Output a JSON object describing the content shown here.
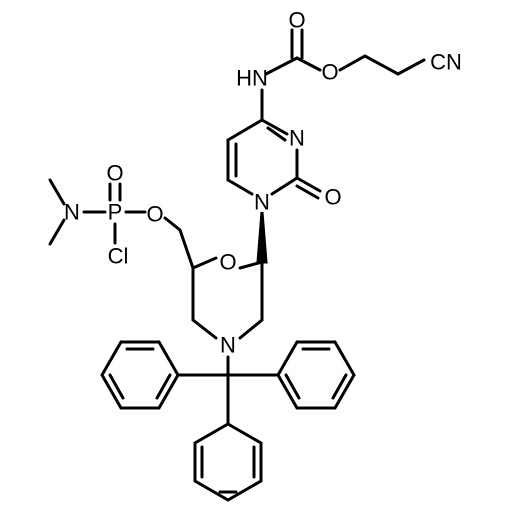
{
  "atoms": [
    {
      "label": "O"
    },
    {
      "label": "HN"
    },
    {
      "label": "O"
    },
    {
      "label": "CN"
    },
    {
      "label": "N"
    },
    {
      "label": "O"
    },
    {
      "label": "N"
    },
    {
      "label": "O"
    },
    {
      "label": "N"
    },
    {
      "label": "P"
    },
    {
      "label": "O"
    },
    {
      "label": "Cl"
    },
    {
      "label": "O"
    },
    {
      "label": "N"
    }
  ]
}
